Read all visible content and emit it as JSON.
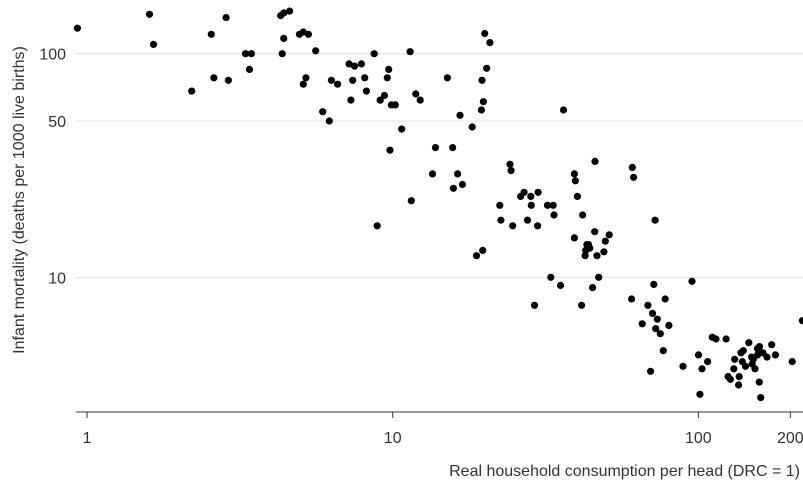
{
  "chart_data": {
    "type": "scatter",
    "title": "",
    "xlabel": "Real household consumption per head (DRC = 1)",
    "ylabel": "Infant mortality (deaths per 1000 live births)",
    "x_scale": "log",
    "y_scale": "log",
    "xlim": [
      0.92,
      220
    ],
    "ylim": [
      2.5,
      160
    ],
    "x_ticks": [
      {
        "value": 1,
        "label": "1"
      },
      {
        "value": 10,
        "label": "10"
      },
      {
        "value": 100,
        "label": "100"
      },
      {
        "value": 200,
        "label": "200"
      }
    ],
    "y_ticks": [
      {
        "value": 10,
        "label": "10"
      },
      {
        "value": 50,
        "label": "50"
      },
      {
        "value": 100,
        "label": "100"
      }
    ],
    "grid": "horizontal",
    "colors": {
      "points": "#000000",
      "grid": "#e2e2e2",
      "axis": "#333333",
      "text": "#333333"
    },
    "points": [
      [
        0.93,
        130
      ],
      [
        1.6,
        150
      ],
      [
        1.65,
        110
      ],
      [
        2.2,
        68
      ],
      [
        2.55,
        122
      ],
      [
        2.6,
        78
      ],
      [
        2.85,
        145
      ],
      [
        2.9,
        76
      ],
      [
        3.3,
        100
      ],
      [
        3.4,
        85
      ],
      [
        3.45,
        100
      ],
      [
        4.3,
        148
      ],
      [
        4.4,
        152
      ],
      [
        4.35,
        100
      ],
      [
        4.4,
        117
      ],
      [
        4.6,
        155
      ],
      [
        4.95,
        122
      ],
      [
        5.1,
        125
      ],
      [
        5.1,
        73
      ],
      [
        5.2,
        78
      ],
      [
        5.3,
        122
      ],
      [
        5.6,
        103
      ],
      [
        5.9,
        55
      ],
      [
        6.2,
        50
      ],
      [
        6.3,
        76
      ],
      [
        6.6,
        73
      ],
      [
        7.2,
        90
      ],
      [
        7.3,
        62
      ],
      [
        7.4,
        76
      ],
      [
        7.5,
        88
      ],
      [
        7.9,
        90
      ],
      [
        8.1,
        78
      ],
      [
        8.2,
        68
      ],
      [
        8.7,
        100
      ],
      [
        8.9,
        17
      ],
      [
        9.1,
        62
      ],
      [
        9.4,
        65
      ],
      [
        9.6,
        78
      ],
      [
        9.7,
        85
      ],
      [
        9.8,
        37
      ],
      [
        9.9,
        59
      ],
      [
        10.2,
        59
      ],
      [
        10.7,
        46
      ],
      [
        11.4,
        102
      ],
      [
        11.5,
        22
      ],
      [
        11.9,
        66
      ],
      [
        12.3,
        62
      ],
      [
        13.5,
        29
      ],
      [
        13.8,
        38
      ],
      [
        15.1,
        78
      ],
      [
        15.7,
        38
      ],
      [
        15.8,
        25
      ],
      [
        16.3,
        29
      ],
      [
        16.6,
        53
      ],
      [
        16.9,
        26
      ],
      [
        18.2,
        47
      ],
      [
        18.8,
        12.5
      ],
      [
        19.5,
        56
      ],
      [
        19.6,
        76
      ],
      [
        19.7,
        13.2
      ],
      [
        19.8,
        61
      ],
      [
        20,
        123
      ],
      [
        20.3,
        86
      ],
      [
        20.8,
        112
      ],
      [
        22.4,
        21
      ],
      [
        22.6,
        18
      ],
      [
        24.2,
        32
      ],
      [
        24.4,
        30
      ],
      [
        24.7,
        17
      ],
      [
        26.2,
        23
      ],
      [
        26.9,
        24
      ],
      [
        27.6,
        18
      ],
      [
        28.3,
        23
      ],
      [
        28.4,
        21
      ],
      [
        29.1,
        7.5
      ],
      [
        29.9,
        24
      ],
      [
        29.8,
        17
      ],
      [
        32.1,
        21
      ],
      [
        32.9,
        10
      ],
      [
        33.7,
        19
      ],
      [
        33.5,
        21
      ],
      [
        35.4,
        9.2
      ],
      [
        36.2,
        56
      ],
      [
        39.3,
        29
      ],
      [
        39.3,
        15
      ],
      [
        39.6,
        27
      ],
      [
        40.2,
        23
      ],
      [
        41.5,
        7.5
      ],
      [
        41.8,
        19
      ],
      [
        42.6,
        12.5
      ],
      [
        42.8,
        13.2
      ],
      [
        43.2,
        14
      ],
      [
        43.7,
        14
      ],
      [
        44.1,
        13.5
      ],
      [
        45.1,
        9
      ],
      [
        45.9,
        33
      ],
      [
        46.6,
        12.5
      ],
      [
        45.8,
        16
      ],
      [
        47.2,
        10
      ],
      [
        49.1,
        13
      ],
      [
        49.6,
        14.5
      ],
      [
        51.1,
        15.5
      ],
      [
        60.5,
        8
      ],
      [
        60.8,
        31
      ],
      [
        61.4,
        28
      ],
      [
        65.5,
        6.2
      ],
      [
        68.4,
        7.5
      ],
      [
        69.8,
        3.8
      ],
      [
        70.8,
        6.9
      ],
      [
        71.5,
        9.3
      ],
      [
        72.2,
        18
      ],
      [
        72.5,
        5.9
      ],
      [
        73.4,
        6.5
      ],
      [
        75.1,
        5.6
      ],
      [
        76.8,
        4.7
      ],
      [
        77.9,
        8
      ],
      [
        80.1,
        6.1
      ],
      [
        89.1,
        4
      ],
      [
        95.3,
        9.6
      ],
      [
        100.1,
        4.5
      ],
      [
        101.2,
        3
      ],
      [
        102.8,
        3.9
      ],
      [
        107.2,
        4.2
      ],
      [
        111.1,
        5.4
      ],
      [
        114.2,
        5.3
      ],
      [
        123.3,
        5.3
      ],
      [
        125.1,
        3.6
      ],
      [
        127.3,
        3.5
      ],
      [
        130.6,
        3.9
      ],
      [
        131.5,
        4.3
      ],
      [
        135.4,
        3.3
      ],
      [
        136,
        3.6
      ],
      [
        137.8,
        4.6
      ],
      [
        139.3,
        4.2
      ],
      [
        140.3,
        4.7
      ],
      [
        142.7,
        4
      ],
      [
        146.2,
        5.1
      ],
      [
        149.4,
        4.4
      ],
      [
        150,
        4.1
      ],
      [
        151.3,
        4.3
      ],
      [
        153.2,
        3.9
      ],
      [
        156.1,
        4.8
      ],
      [
        156.3,
        4.5
      ],
      [
        158.3,
        3.4
      ],
      [
        158.5,
        4.9
      ],
      [
        160,
        2.9
      ],
      [
        162.8,
        4.6
      ],
      [
        167.8,
        4.4
      ],
      [
        173.8,
        5.0
      ],
      [
        178.7,
        4.5
      ],
      [
        202.8,
        4.2
      ],
      [
        219,
        6.4
      ]
    ]
  }
}
